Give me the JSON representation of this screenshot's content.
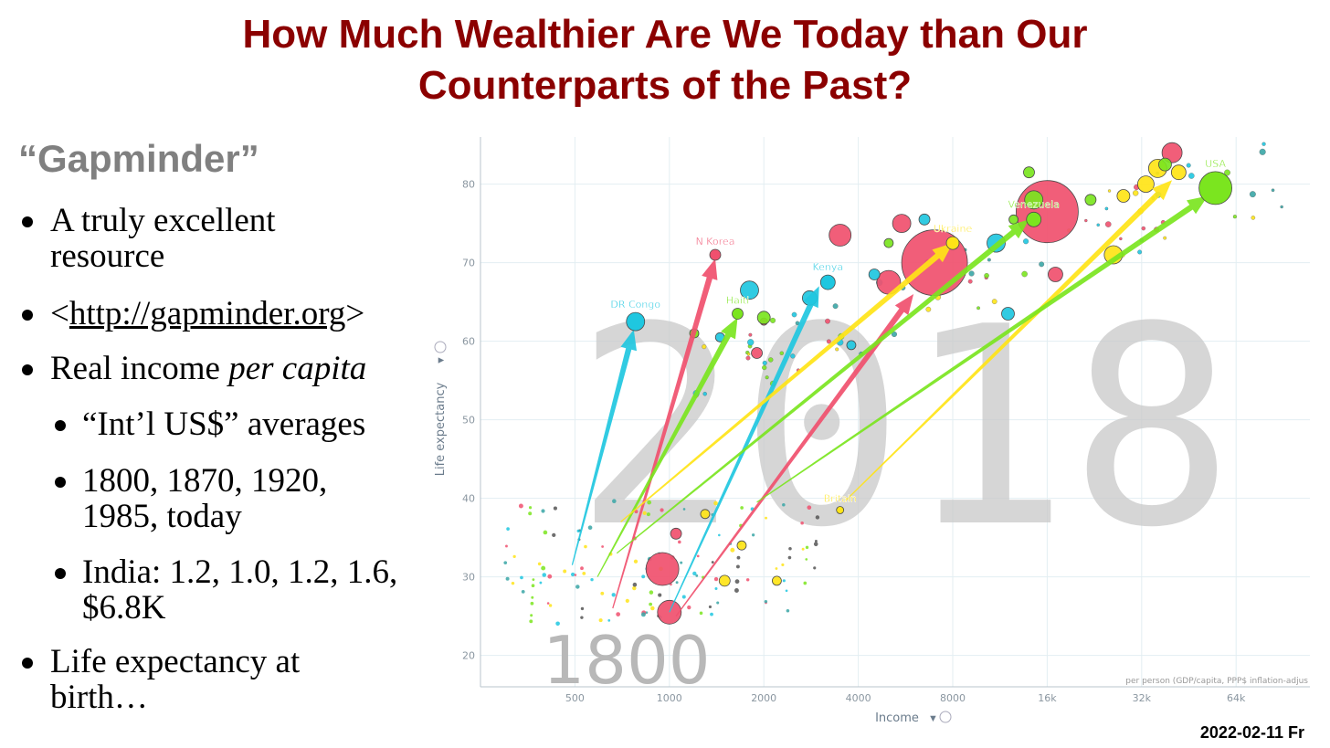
{
  "slide": {
    "title_line1": "How Much Wealthier Are We Today than Our",
    "title_line2": "Counterparts of the Past?",
    "subtitle": "“Gapminder”",
    "bullets": [
      {
        "line1": "A truly excellent",
        "line2": "resource"
      },
      {
        "pre": "<",
        "link": "http://gapminder.org",
        "post": ">"
      },
      {
        "text": "Real income ",
        "italic": "per capita"
      },
      {
        "text": "“Int’l US$” averages"
      },
      {
        "line1": "1800, 1870, 1920,",
        "line2": "1985, today"
      },
      {
        "line1": "India: 1.2, 1.0, 1.2, 1.6,",
        "line2": "$6.8K"
      },
      {
        "line1": "Life expectancy at",
        "line2": "birth…"
      }
    ],
    "datestamp": "2022-02-11 Fr"
  },
  "chart_data": {
    "type": "scatter",
    "xlabel": "Income",
    "ylabel": "Life expectancy",
    "x_scale": "log2",
    "xlim": [
      250,
      110000
    ],
    "ylim": [
      16,
      86
    ],
    "x_ticks": [
      500,
      1000,
      2000,
      4000,
      8000,
      16000,
      32000,
      64000
    ],
    "x_tick_labels": [
      "500",
      "1000",
      "2000",
      "4000",
      "8000",
      "16k",
      "32k",
      "64k"
    ],
    "y_ticks": [
      20,
      30,
      40,
      50,
      60,
      70,
      80
    ],
    "y_tick_labels": [
      "20",
      "30",
      "40",
      "50",
      "60",
      "70",
      "80"
    ],
    "big_year": "2018",
    "small_year": "1800",
    "axis_note": "per person (GDP/capita, PPP$ inflation-adjus",
    "colors": {
      "red": "#f0506e",
      "cyan": "#1fc7e0",
      "green": "#7be51f",
      "yellow": "#ffe417"
    },
    "labeled_points": [
      {
        "label": "DR Congo",
        "color": "cyan",
        "x": 780,
        "y": 62.5,
        "r": 10
      },
      {
        "label": "N Korea",
        "color": "red",
        "x": 1400,
        "y": 71,
        "r": 6
      },
      {
        "label": "Haiti",
        "color": "green",
        "x": 1650,
        "y": 63.5,
        "r": 6
      },
      {
        "label": "Kenya",
        "color": "cyan",
        "x": 3200,
        "y": 67.5,
        "r": 8
      },
      {
        "label": "Ukraine",
        "color": "yellow",
        "x": 8000,
        "y": 72.5,
        "r": 7
      },
      {
        "label": "Venezuela",
        "color": "green",
        "x": 14500,
        "y": 75.5,
        "r": 8
      },
      {
        "label": "USA",
        "color": "green",
        "x": 55000,
        "y": 79.5,
        "r": 18
      },
      {
        "label": "Britain",
        "color": "yellow",
        "x": 3500,
        "y": 38.5,
        "r": 4
      }
    ],
    "arrows": [
      {
        "color": "cyan",
        "from": [
          490,
          31.5
        ],
        "to": [
          770,
          61.5
        ]
      },
      {
        "color": "red",
        "from": [
          660,
          26
        ],
        "to": [
          1400,
          70.5
        ]
      },
      {
        "color": "green",
        "from": [
          590,
          30
        ],
        "to": [
          1650,
          63
        ]
      },
      {
        "color": "cyan",
        "from": [
          1000,
          25.5
        ],
        "to": [
          3000,
          67
        ]
      },
      {
        "color": "red",
        "from": [
          1050,
          25
        ],
        "to": [
          6000,
          66
        ]
      },
      {
        "color": "yellow",
        "from": [
          700,
          37
        ],
        "to": [
          8000,
          72.5
        ]
      },
      {
        "color": "green",
        "from": [
          680,
          33
        ],
        "to": [
          14000,
          75.5
        ]
      },
      {
        "color": "yellow",
        "from": [
          3600,
          39.5
        ],
        "to": [
          40000,
          80.5
        ]
      },
      {
        "color": "green",
        "from": [
          1900,
          39.5
        ],
        "to": [
          52000,
          78.5
        ]
      }
    ],
    "bubbles": [
      {
        "color": "red",
        "x": 7000,
        "y": 70,
        "r": 36
      },
      {
        "color": "red",
        "x": 16000,
        "y": 76.5,
        "r": 34
      },
      {
        "color": "red",
        "x": 950,
        "y": 31,
        "r": 18
      },
      {
        "color": "red",
        "x": 1000,
        "y": 25.5,
        "r": 13
      },
      {
        "color": "red",
        "x": 3500,
        "y": 73.5,
        "r": 12
      },
      {
        "color": "red",
        "x": 5000,
        "y": 67.5,
        "r": 13
      },
      {
        "color": "red",
        "x": 5500,
        "y": 75,
        "r": 10
      },
      {
        "color": "red",
        "x": 40000,
        "y": 84,
        "r": 11
      },
      {
        "color": "red",
        "x": 17000,
        "y": 68.5,
        "r": 8
      },
      {
        "color": "red",
        "x": 1900,
        "y": 58.5,
        "r": 6
      },
      {
        "color": "red",
        "x": 1050,
        "y": 35.5,
        "r": 6
      },
      {
        "color": "red",
        "x": 2000,
        "y": 62.5,
        "r": 4
      },
      {
        "color": "cyan",
        "x": 1800,
        "y": 66.5,
        "r": 10
      },
      {
        "color": "cyan",
        "x": 2800,
        "y": 65.5,
        "r": 8
      },
      {
        "color": "cyan",
        "x": 4500,
        "y": 68.5,
        "r": 6
      },
      {
        "color": "cyan",
        "x": 11000,
        "y": 72.5,
        "r": 10
      },
      {
        "color": "cyan",
        "x": 12000,
        "y": 63.5,
        "r": 7
      },
      {
        "color": "cyan",
        "x": 6500,
        "y": 75.5,
        "r": 6
      },
      {
        "color": "cyan",
        "x": 1450,
        "y": 60.5,
        "r": 5
      },
      {
        "color": "cyan",
        "x": 3800,
        "y": 59.5,
        "r": 5
      },
      {
        "color": "yellow",
        "x": 33000,
        "y": 80,
        "r": 9
      },
      {
        "color": "yellow",
        "x": 36000,
        "y": 82,
        "r": 10
      },
      {
        "color": "yellow",
        "x": 42000,
        "y": 81.5,
        "r": 8
      },
      {
        "color": "yellow",
        "x": 26000,
        "y": 71,
        "r": 10
      },
      {
        "color": "yellow",
        "x": 28000,
        "y": 78.5,
        "r": 7
      },
      {
        "color": "yellow",
        "x": 1700,
        "y": 34,
        "r": 5
      },
      {
        "color": "yellow",
        "x": 1500,
        "y": 29.5,
        "r": 6
      },
      {
        "color": "yellow",
        "x": 2200,
        "y": 29.5,
        "r": 5
      },
      {
        "color": "yellow",
        "x": 1300,
        "y": 38,
        "r": 5
      },
      {
        "color": "green",
        "x": 2000,
        "y": 63,
        "r": 7
      },
      {
        "color": "green",
        "x": 14500,
        "y": 78,
        "r": 10
      },
      {
        "color": "green",
        "x": 14000,
        "y": 81.5,
        "r": 6
      },
      {
        "color": "green",
        "x": 38000,
        "y": 82.5,
        "r": 7
      },
      {
        "color": "green",
        "x": 1200,
        "y": 61,
        "r": 5
      },
      {
        "color": "green",
        "x": 22000,
        "y": 78,
        "r": 6
      },
      {
        "color": "green",
        "x": 12500,
        "y": 75.5,
        "r": 5
      },
      {
        "color": "green",
        "x": 5000,
        "y": 72.5,
        "r": 5
      }
    ]
  }
}
